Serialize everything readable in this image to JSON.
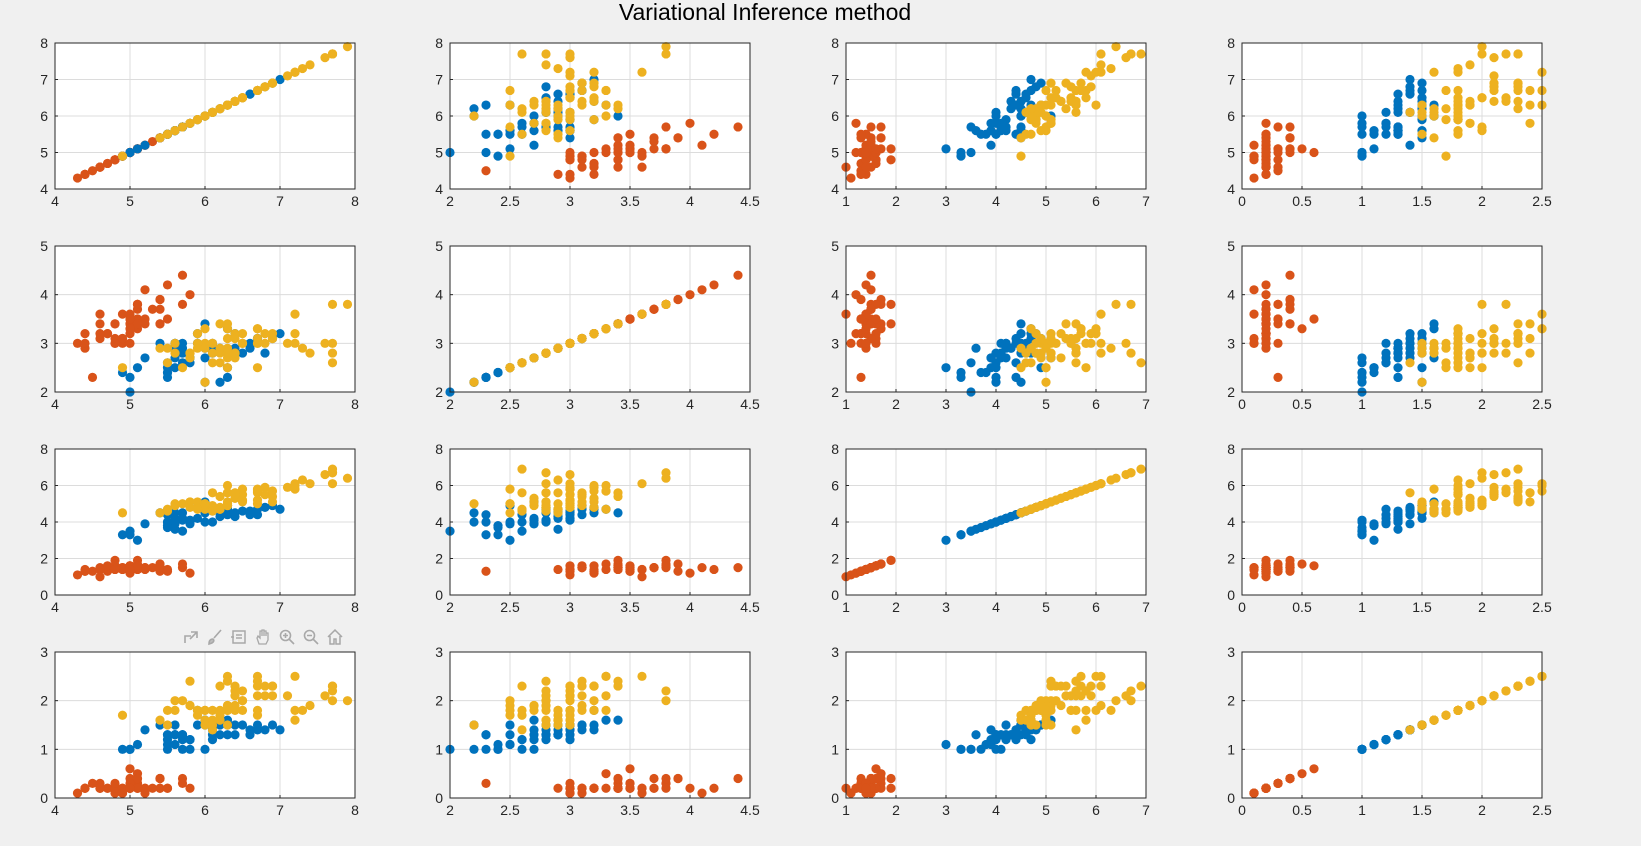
{
  "figure": {
    "title": "Variational Inference method",
    "background": "#f0f0f0"
  },
  "colors": {
    "class_1": "#d95319",
    "class_2": "#0072bd",
    "class_3": "#edb120",
    "grid": "#dcdcdc",
    "axis": "#262626"
  },
  "toolbar": {
    "icons": [
      "export-icon",
      "brush-icon",
      "datatip-icon",
      "pan-icon",
      "zoom-in-icon",
      "zoom-out-icon",
      "home-icon"
    ]
  },
  "chart_data": {
    "type": "scatter",
    "layout": "4x4 scatter-plot matrix",
    "features": [
      {
        "name": "",
        "lim": [
          4,
          8
        ],
        "ticks": [
          4,
          5,
          6,
          7,
          8
        ]
      },
      {
        "name": "",
        "lim": [
          2,
          4.5
        ],
        "ticks": [
          2,
          2.5,
          3,
          3.5,
          4,
          4.5
        ]
      },
      {
        "name": "",
        "lim": [
          1,
          7
        ],
        "ticks": [
          1,
          2,
          3,
          4,
          5,
          6,
          7
        ]
      },
      {
        "name": "",
        "lim": [
          0,
          2.5
        ],
        "ticks": [
          0,
          0.5,
          1,
          1.5,
          2,
          2.5
        ]
      }
    ],
    "row_ylim": [
      [
        4,
        8
      ],
      [
        2,
        5
      ],
      [
        0,
        8
      ],
      [
        0,
        3
      ]
    ],
    "row_yticks": [
      [
        4,
        5,
        6,
        7,
        8
      ],
      [
        2,
        3,
        4,
        5
      ],
      [
        0,
        2,
        4,
        6,
        8
      ],
      [
        0,
        1,
        2,
        3
      ]
    ],
    "grid": true,
    "series": [
      {
        "color_key": "class_1",
        "points": [
          [
            5.1,
            3.5,
            1.4,
            0.2
          ],
          [
            4.9,
            3.0,
            1.4,
            0.2
          ],
          [
            4.7,
            3.2,
            1.3,
            0.2
          ],
          [
            4.6,
            3.1,
            1.5,
            0.2
          ],
          [
            5.0,
            3.6,
            1.4,
            0.2
          ],
          [
            5.4,
            3.9,
            1.7,
            0.4
          ],
          [
            4.6,
            3.4,
            1.4,
            0.3
          ],
          [
            5.0,
            3.4,
            1.5,
            0.2
          ],
          [
            4.4,
            2.9,
            1.4,
            0.2
          ],
          [
            4.9,
            3.1,
            1.5,
            0.1
          ],
          [
            5.4,
            3.7,
            1.5,
            0.2
          ],
          [
            4.8,
            3.4,
            1.6,
            0.2
          ],
          [
            4.8,
            3.0,
            1.4,
            0.1
          ],
          [
            4.3,
            3.0,
            1.1,
            0.1
          ],
          [
            5.8,
            4.0,
            1.2,
            0.2
          ],
          [
            5.7,
            4.4,
            1.5,
            0.4
          ],
          [
            5.4,
            3.9,
            1.3,
            0.4
          ],
          [
            5.1,
            3.5,
            1.4,
            0.3
          ],
          [
            5.7,
            3.8,
            1.7,
            0.3
          ],
          [
            5.1,
            3.8,
            1.5,
            0.3
          ],
          [
            5.4,
            3.4,
            1.7,
            0.2
          ],
          [
            5.1,
            3.7,
            1.5,
            0.4
          ],
          [
            4.6,
            3.6,
            1.0,
            0.2
          ],
          [
            5.1,
            3.3,
            1.7,
            0.5
          ],
          [
            4.8,
            3.4,
            1.9,
            0.2
          ],
          [
            5.0,
            3.0,
            1.6,
            0.2
          ],
          [
            5.0,
            3.4,
            1.6,
            0.4
          ],
          [
            5.2,
            3.5,
            1.5,
            0.2
          ],
          [
            5.2,
            3.4,
            1.4,
            0.2
          ],
          [
            4.7,
            3.2,
            1.6,
            0.2
          ],
          [
            4.8,
            3.1,
            1.6,
            0.2
          ],
          [
            5.4,
            3.4,
            1.5,
            0.4
          ],
          [
            5.2,
            4.1,
            1.5,
            0.1
          ],
          [
            5.5,
            4.2,
            1.4,
            0.2
          ],
          [
            4.9,
            3.1,
            1.5,
            0.2
          ],
          [
            5.0,
            3.2,
            1.2,
            0.2
          ],
          [
            5.5,
            3.5,
            1.3,
            0.2
          ],
          [
            4.9,
            3.6,
            1.4,
            0.1
          ],
          [
            4.4,
            3.0,
            1.3,
            0.2
          ],
          [
            5.1,
            3.4,
            1.5,
            0.2
          ],
          [
            5.0,
            3.5,
            1.3,
            0.3
          ],
          [
            4.5,
            2.3,
            1.3,
            0.3
          ],
          [
            4.4,
            3.2,
            1.3,
            0.2
          ],
          [
            5.0,
            3.5,
            1.6,
            0.6
          ],
          [
            5.1,
            3.8,
            1.9,
            0.4
          ],
          [
            4.8,
            3.0,
            1.4,
            0.3
          ],
          [
            5.1,
            3.8,
            1.6,
            0.2
          ],
          [
            4.6,
            3.2,
            1.4,
            0.2
          ],
          [
            5.3,
            3.7,
            1.5,
            0.2
          ],
          [
            5.0,
            3.3,
            1.4,
            0.2
          ]
        ]
      },
      {
        "color_key": "class_2",
        "points": [
          [
            7.0,
            3.2,
            4.7,
            1.4
          ],
          [
            6.4,
            3.2,
            4.5,
            1.5
          ],
          [
            6.9,
            3.1,
            4.9,
            1.5
          ],
          [
            5.5,
            2.3,
            4.0,
            1.3
          ],
          [
            6.5,
            2.8,
            4.6,
            1.5
          ],
          [
            5.7,
            2.8,
            4.5,
            1.3
          ],
          [
            6.3,
            3.3,
            4.7,
            1.6
          ],
          [
            4.9,
            2.4,
            3.3,
            1.0
          ],
          [
            6.6,
            2.9,
            4.6,
            1.3
          ],
          [
            5.2,
            2.7,
            3.9,
            1.4
          ],
          [
            5.0,
            2.0,
            3.5,
            1.0
          ],
          [
            5.9,
            3.0,
            4.2,
            1.5
          ],
          [
            6.0,
            2.2,
            4.0,
            1.0
          ],
          [
            6.1,
            2.9,
            4.7,
            1.4
          ],
          [
            5.6,
            2.9,
            3.6,
            1.3
          ],
          [
            6.7,
            3.1,
            4.4,
            1.4
          ],
          [
            5.6,
            3.0,
            4.5,
            1.5
          ],
          [
            5.8,
            2.7,
            4.1,
            1.0
          ],
          [
            6.2,
            2.2,
            4.5,
            1.5
          ],
          [
            5.6,
            2.5,
            3.9,
            1.1
          ],
          [
            5.9,
            3.2,
            4.8,
            1.8
          ],
          [
            6.1,
            2.8,
            4.0,
            1.3
          ],
          [
            6.3,
            2.5,
            4.9,
            1.5
          ],
          [
            6.1,
            2.8,
            4.7,
            1.2
          ],
          [
            6.4,
            2.9,
            4.3,
            1.3
          ],
          [
            6.6,
            3.0,
            4.4,
            1.4
          ],
          [
            6.8,
            2.8,
            4.8,
            1.4
          ],
          [
            6.0,
            2.9,
            4.5,
            1.5
          ],
          [
            5.7,
            2.6,
            3.5,
            1.0
          ],
          [
            5.5,
            2.4,
            3.8,
            1.1
          ],
          [
            5.5,
            2.4,
            3.7,
            1.0
          ],
          [
            5.8,
            2.7,
            3.9,
            1.2
          ],
          [
            6.0,
            2.7,
            5.1,
            1.6
          ],
          [
            5.4,
            3.0,
            4.5,
            1.5
          ],
          [
            6.0,
            3.4,
            4.5,
            1.6
          ],
          [
            6.7,
            3.1,
            4.7,
            1.5
          ],
          [
            6.3,
            2.3,
            4.4,
            1.3
          ],
          [
            5.6,
            3.0,
            4.1,
            1.3
          ],
          [
            5.5,
            2.5,
            4.0,
            1.3
          ],
          [
            5.5,
            2.6,
            4.4,
            1.2
          ],
          [
            6.1,
            3.0,
            4.6,
            1.4
          ],
          [
            5.8,
            2.6,
            4.0,
            1.2
          ],
          [
            5.0,
            2.3,
            3.3,
            1.0
          ],
          [
            5.6,
            2.7,
            4.2,
            1.3
          ],
          [
            5.7,
            3.0,
            4.2,
            1.2
          ],
          [
            5.7,
            2.9,
            4.2,
            1.3
          ],
          [
            6.2,
            2.9,
            4.3,
            1.3
          ],
          [
            5.1,
            2.5,
            3.0,
            1.1
          ],
          [
            5.7,
            2.8,
            4.1,
            1.3
          ]
        ]
      },
      {
        "color_key": "class_3",
        "points": [
          [
            6.7,
            3.0,
            5.0,
            1.7
          ],
          [
            6.3,
            3.3,
            6.0,
            2.5
          ],
          [
            5.8,
            2.7,
            5.1,
            1.9
          ],
          [
            7.1,
            3.0,
            5.9,
            2.1
          ],
          [
            6.3,
            2.9,
            5.6,
            1.8
          ],
          [
            6.5,
            3.0,
            5.8,
            2.2
          ],
          [
            7.6,
            3.0,
            6.6,
            2.1
          ],
          [
            4.9,
            2.5,
            4.5,
            1.7
          ],
          [
            7.3,
            2.9,
            6.3,
            1.8
          ],
          [
            6.7,
            2.5,
            5.8,
            1.8
          ],
          [
            7.2,
            3.6,
            6.1,
            2.5
          ],
          [
            6.5,
            3.2,
            5.1,
            2.0
          ],
          [
            6.4,
            2.7,
            5.3,
            1.9
          ],
          [
            6.8,
            3.0,
            5.5,
            2.1
          ],
          [
            5.7,
            2.5,
            5.0,
            2.0
          ],
          [
            5.8,
            2.8,
            5.1,
            2.4
          ],
          [
            6.4,
            3.2,
            5.3,
            2.3
          ],
          [
            6.5,
            3.0,
            5.5,
            1.8
          ],
          [
            7.7,
            3.8,
            6.7,
            2.2
          ],
          [
            7.7,
            2.6,
            6.9,
            2.3
          ],
          [
            6.0,
            2.2,
            5.0,
            1.5
          ],
          [
            6.9,
            3.2,
            5.7,
            2.3
          ],
          [
            5.6,
            2.8,
            4.9,
            2.0
          ],
          [
            7.7,
            2.8,
            6.7,
            2.0
          ],
          [
            6.3,
            2.7,
            4.9,
            1.8
          ],
          [
            6.7,
            3.3,
            5.7,
            2.1
          ],
          [
            7.2,
            3.2,
            6.0,
            1.8
          ],
          [
            6.2,
            2.8,
            4.8,
            1.8
          ],
          [
            6.1,
            3.0,
            4.9,
            1.8
          ],
          [
            6.4,
            2.8,
            5.6,
            2.1
          ],
          [
            7.2,
            3.0,
            5.8,
            1.6
          ],
          [
            7.4,
            2.8,
            6.1,
            1.9
          ],
          [
            7.9,
            3.8,
            6.4,
            2.0
          ],
          [
            6.4,
            2.8,
            5.6,
            2.2
          ],
          [
            6.3,
            2.8,
            5.1,
            1.5
          ],
          [
            6.1,
            2.6,
            5.6,
            1.4
          ],
          [
            7.7,
            3.0,
            6.1,
            2.3
          ],
          [
            6.3,
            3.4,
            5.6,
            2.4
          ],
          [
            6.4,
            3.1,
            5.5,
            1.8
          ],
          [
            6.0,
            3.0,
            4.8,
            1.8
          ],
          [
            6.9,
            3.1,
            5.4,
            2.1
          ],
          [
            6.7,
            3.1,
            5.6,
            2.4
          ],
          [
            6.9,
            3.1,
            5.1,
            2.3
          ],
          [
            6.8,
            3.2,
            5.9,
            2.3
          ],
          [
            6.7,
            3.3,
            5.7,
            2.5
          ],
          [
            6.7,
            3.0,
            5.2,
            2.3
          ],
          [
            6.3,
            2.5,
            5.0,
            1.9
          ],
          [
            6.5,
            3.0,
            5.2,
            2.0
          ],
          [
            6.2,
            3.4,
            5.4,
            2.3
          ],
          [
            5.9,
            3.0,
            5.1,
            1.8
          ],
          [
            5.6,
            3.0,
            5.0,
            1.8
          ],
          [
            5.4,
            2.9,
            4.5,
            1.6
          ],
          [
            5.9,
            3.2,
            4.8,
            1.8
          ],
          [
            6.1,
            3.0,
            4.8,
            1.5
          ],
          [
            5.5,
            2.6,
            4.6,
            1.8
          ],
          [
            6.0,
            3.3,
            4.7,
            1.8
          ],
          [
            6.2,
            2.6,
            4.7,
            1.7
          ],
          [
            5.8,
            2.8,
            4.8,
            1.9
          ],
          [
            5.9,
            2.9,
            4.7,
            1.7
          ],
          [
            6.0,
            2.9,
            5.0,
            1.6
          ],
          [
            5.5,
            2.9,
            4.7,
            1.5
          ],
          [
            6.3,
            3.1,
            4.9,
            1.9
          ],
          [
            6.2,
            2.9,
            4.7,
            1.6
          ],
          [
            6.1,
            2.8,
            4.6,
            1.6
          ]
        ]
      }
    ]
  }
}
